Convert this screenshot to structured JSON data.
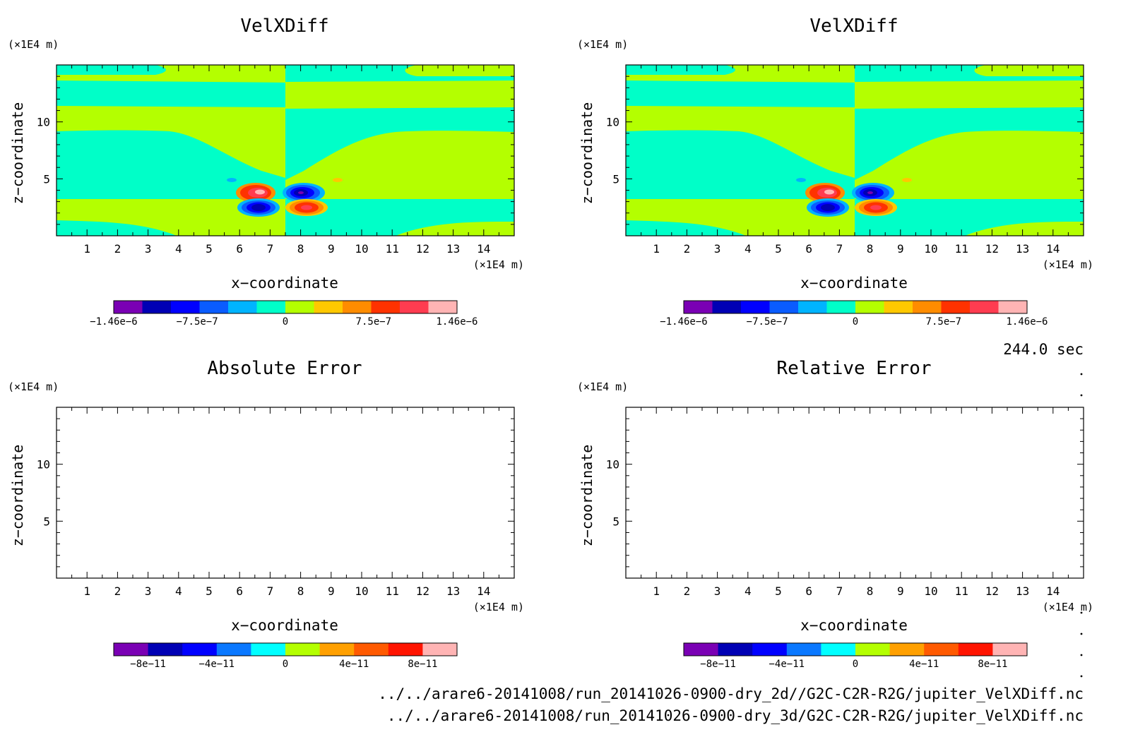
{
  "time_label": "244.0 sec",
  "file_paths": [
    "../../arare6-20141008/run_20141026-0900-dry_2d//G2C-C2R-R2G/jupiter_VelXDiff.nc",
    "../../arare6-20141008/run_20141026-0900-dry_3d/G2C-C2R-R2G/jupiter_VelXDiff.nc"
  ],
  "colors": {
    "velx_levels": [
      "#7a00b4",
      "#0000b4",
      "#0000ff",
      "#0a5cff",
      "#00b4ff",
      "#00ffc8",
      "#b4ff00",
      "#ffc800",
      "#ff8c00",
      "#ff3200",
      "#ff3c50",
      "#ffb4b4"
    ],
    "err_levels": [
      "#7a00b4",
      "#0000b4",
      "#0000ff",
      "#0a78ff",
      "#00ffff",
      "#b4ff00",
      "#ffa000",
      "#ff5a00",
      "#ff1400",
      "#ffb4b4"
    ]
  },
  "chart_data": [
    {
      "id": "velx-2d",
      "type": "heatmap",
      "title": "VelXDiff",
      "xlabel": "x−coordinate",
      "ylabel": "z−coordinate",
      "x_unit": "(×1E4 m)",
      "y_unit": "(×1E4 m)",
      "xlim": [
        0,
        15
      ],
      "ylim": [
        0,
        15
      ],
      "xticks": [
        1,
        2,
        3,
        4,
        5,
        6,
        7,
        8,
        9,
        10,
        11,
        12,
        13,
        14
      ],
      "yticks": [
        5,
        10
      ],
      "colorbar_ticks": [
        "−1.46e−6",
        "−7.5e−7",
        "0",
        "7.5e−7",
        "1.46e−6"
      ],
      "colorbar_range": [
        -1.46e-06,
        1.46e-06
      ],
      "has_contours": true
    },
    {
      "id": "velx-3d",
      "type": "heatmap",
      "title": "VelXDiff",
      "xlabel": "x−coordinate",
      "ylabel": "z−coordinate",
      "x_unit": "(×1E4 m)",
      "y_unit": "(×1E4 m)",
      "xlim": [
        0,
        15
      ],
      "ylim": [
        0,
        15
      ],
      "xticks": [
        1,
        2,
        3,
        4,
        5,
        6,
        7,
        8,
        9,
        10,
        11,
        12,
        13,
        14
      ],
      "yticks": [
        5,
        10
      ],
      "colorbar_ticks": [
        "−1.46e−6",
        "−7.5e−7",
        "0",
        "7.5e−7",
        "1.46e−6"
      ],
      "colorbar_range": [
        -1.46e-06,
        1.46e-06
      ],
      "has_contours": true
    },
    {
      "id": "abs-err",
      "type": "heatmap",
      "title": "Absolute Error",
      "xlabel": "x−coordinate",
      "ylabel": "z−coordinate",
      "x_unit": "(×1E4 m)",
      "y_unit": "(×1E4 m)",
      "xlim": [
        0,
        15
      ],
      "ylim": [
        0,
        15
      ],
      "xticks": [
        1,
        2,
        3,
        4,
        5,
        6,
        7,
        8,
        9,
        10,
        11,
        12,
        13,
        14
      ],
      "yticks": [
        5,
        10
      ],
      "colorbar_ticks": [
        "−8e−11",
        "−4e−11",
        "0",
        "4e−11",
        "8e−11"
      ],
      "colorbar_range": [
        -1e-10,
        1e-10
      ],
      "has_contours": false
    },
    {
      "id": "rel-err",
      "type": "heatmap",
      "title": "Relative Error",
      "xlabel": "x−coordinate",
      "ylabel": "z−coordinate",
      "x_unit": "(×1E4 m)",
      "y_unit": "(×1E4 m)",
      "xlim": [
        0,
        15
      ],
      "ylim": [
        0,
        15
      ],
      "xticks": [
        1,
        2,
        3,
        4,
        5,
        6,
        7,
        8,
        9,
        10,
        11,
        12,
        13,
        14
      ],
      "yticks": [
        5,
        10
      ],
      "colorbar_ticks": [
        "−8e−11",
        "−4e−11",
        "0",
        "4e−11",
        "8e−11"
      ],
      "colorbar_range": [
        -1e-10,
        1e-10
      ],
      "has_contours": false
    }
  ]
}
